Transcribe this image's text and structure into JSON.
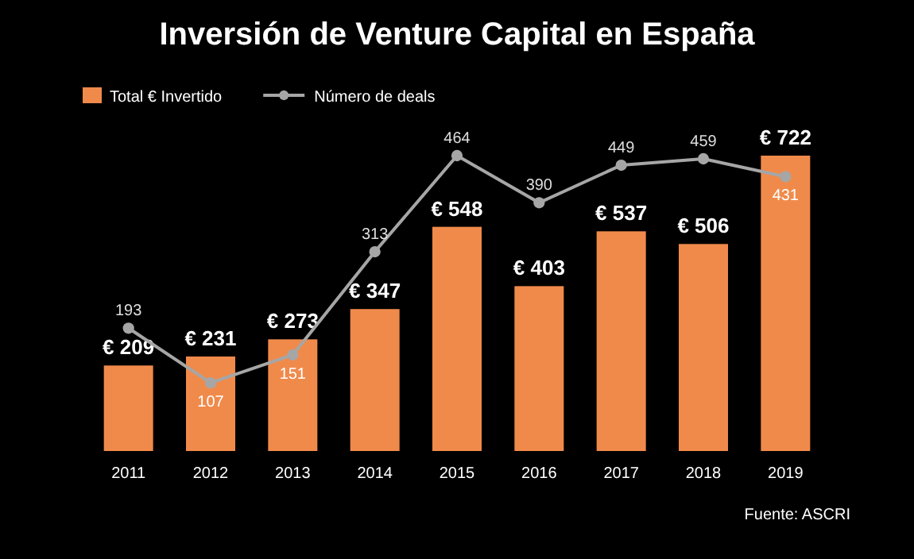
{
  "chart_data": {
    "type": "bar",
    "title": "Inversión de Venture Capital en España",
    "categories": [
      "2011",
      "2012",
      "2013",
      "2014",
      "2015",
      "2016",
      "2017",
      "2018",
      "2019"
    ],
    "series": [
      {
        "name": "Total € Invertido",
        "color": "#f08a4b",
        "values": [
          209,
          231,
          273,
          347,
          548,
          403,
          537,
          506,
          722
        ],
        "value_labels": [
          "€ 209",
          "€ 231",
          "€ 273",
          "€ 347",
          "€ 548",
          "€ 403",
          "€ 537",
          "€ 506",
          "€ 722"
        ]
      },
      {
        "name": "Número de deals",
        "type": "line",
        "axis": "y2",
        "color": "#a6a6a6",
        "values": [
          193,
          107,
          151,
          313,
          464,
          390,
          449,
          459,
          431
        ],
        "value_labels": [
          "193",
          "107",
          "151",
          "313",
          "464",
          "390",
          "449",
          "459",
          "431"
        ]
      }
    ],
    "marker": "circle",
    "legend": "top left",
    "annotations": [
      "Fuente: ASCRI"
    ]
  }
}
